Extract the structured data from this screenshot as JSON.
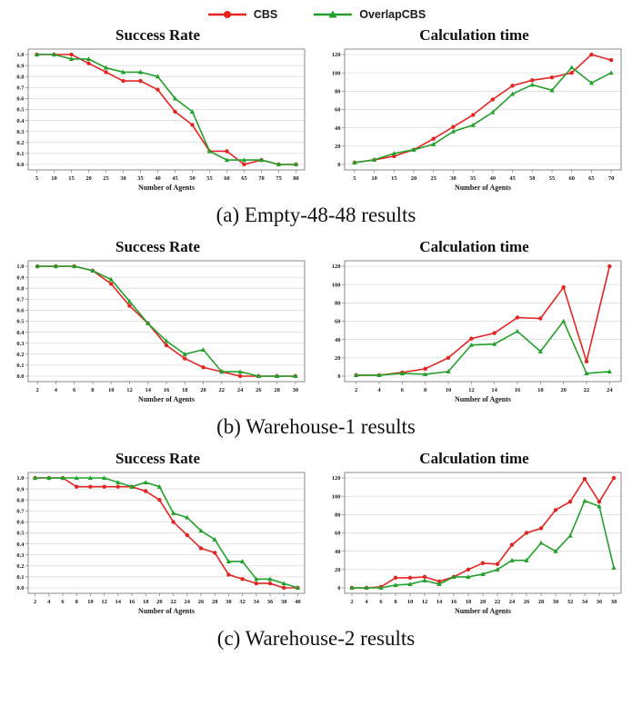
{
  "colors": {
    "cbs": "#e32522",
    "overlapcbs": "#23a02b",
    "grid": "#d8d8d8",
    "axis": "#8a8a8a",
    "tick_text": "#1a1a1a"
  },
  "legend": [
    {
      "label": "CBS",
      "color": "#e32522",
      "marker": "circle"
    },
    {
      "label": "OverlapCBS",
      "color": "#23a02b",
      "marker": "triangle"
    }
  ],
  "figures": [
    {
      "caption": "(a) Empty-48-48 results"
    },
    {
      "caption": "(b) Warehouse-1 results"
    },
    {
      "caption": "(c) Warehouse-2 results"
    }
  ],
  "chart_data": [
    {
      "figure": "a",
      "panel": "left",
      "type": "line",
      "title": "Success Rate",
      "xlabel": "Number of Agents",
      "x": [
        5,
        10,
        15,
        20,
        25,
        30,
        35,
        40,
        45,
        50,
        55,
        60,
        65,
        70,
        75,
        80
      ],
      "ylim": [
        0,
        1.0
      ],
      "yticks": [
        0.0,
        0.1,
        0.2,
        0.3,
        0.4,
        0.5,
        0.6,
        0.7,
        0.8,
        0.9,
        1.0
      ],
      "grid": true,
      "legend_position": "figure-top",
      "series": [
        {
          "name": "CBS",
          "values": [
            1.0,
            1.0,
            1.0,
            0.92,
            0.84,
            0.76,
            0.76,
            0.68,
            0.48,
            0.36,
            0.12,
            0.12,
            0.0,
            0.04,
            0.0,
            0.0
          ]
        },
        {
          "name": "OverlapCBS",
          "values": [
            1.0,
            1.0,
            0.96,
            0.96,
            0.88,
            0.84,
            0.84,
            0.8,
            0.6,
            0.48,
            0.12,
            0.04,
            0.04,
            0.04,
            0.0,
            0.0
          ]
        }
      ]
    },
    {
      "figure": "a",
      "panel": "right",
      "type": "line",
      "title": "Calculation time",
      "xlabel": "Number of Agents",
      "x": [
        5,
        10,
        15,
        20,
        25,
        30,
        35,
        40,
        45,
        50,
        55,
        60,
        65,
        70
      ],
      "ylim": [
        0,
        120
      ],
      "yticks": [
        0,
        20,
        40,
        60,
        80,
        100,
        120
      ],
      "grid": true,
      "legend_position": "figure-top",
      "series": [
        {
          "name": "CBS",
          "values": [
            2,
            5,
            9,
            16,
            28,
            41,
            54,
            71,
            86,
            92,
            95,
            100,
            120,
            114
          ]
        },
        {
          "name": "OverlapCBS",
          "values": [
            2,
            5,
            12,
            16,
            22,
            36,
            43,
            57,
            77,
            87,
            81,
            106,
            89,
            100
          ]
        }
      ]
    },
    {
      "figure": "b",
      "panel": "left",
      "type": "line",
      "title": "Success Rate",
      "xlabel": "Number of Agents",
      "x": [
        2,
        4,
        6,
        8,
        10,
        12,
        14,
        16,
        18,
        20,
        22,
        24,
        26,
        28,
        30
      ],
      "ylim": [
        0,
        1.0
      ],
      "yticks": [
        0.0,
        0.1,
        0.2,
        0.3,
        0.4,
        0.5,
        0.6,
        0.7,
        0.8,
        0.9,
        1.0
      ],
      "grid": true,
      "legend_position": "figure-top",
      "series": [
        {
          "name": "CBS",
          "values": [
            1.0,
            1.0,
            1.0,
            0.96,
            0.84,
            0.64,
            0.48,
            0.28,
            0.16,
            0.08,
            0.04,
            0.0,
            0.0,
            0.0,
            0.0
          ]
        },
        {
          "name": "OverlapCBS",
          "values": [
            1.0,
            1.0,
            1.0,
            0.96,
            0.88,
            0.68,
            0.48,
            0.32,
            0.2,
            0.24,
            0.04,
            0.04,
            0.0,
            0.0,
            0.0
          ]
        }
      ]
    },
    {
      "figure": "b",
      "panel": "right",
      "type": "line",
      "title": "Calculation time",
      "xlabel": "Number of Agents",
      "x": [
        2,
        4,
        6,
        8,
        10,
        12,
        14,
        16,
        18,
        20,
        22,
        24
      ],
      "ylim": [
        0,
        120
      ],
      "yticks": [
        0,
        20,
        40,
        60,
        80,
        100,
        120
      ],
      "grid": true,
      "legend_position": "figure-top",
      "series": [
        {
          "name": "CBS",
          "values": [
            1,
            1,
            4,
            8,
            20,
            41,
            47,
            64,
            63,
            97,
            16,
            120
          ]
        },
        {
          "name": "OverlapCBS",
          "values": [
            1,
            1,
            3,
            2,
            5,
            34,
            35,
            49,
            27,
            60,
            3,
            5
          ]
        }
      ]
    },
    {
      "figure": "c",
      "panel": "left",
      "type": "line",
      "title": "Success Rate",
      "xlabel": "Number of Agents",
      "x": [
        2,
        4,
        6,
        8,
        10,
        12,
        14,
        16,
        18,
        20,
        22,
        24,
        26,
        28,
        30,
        32,
        34,
        36,
        38,
        40
      ],
      "ylim": [
        0,
        1.0
      ],
      "yticks": [
        0.0,
        0.1,
        0.2,
        0.3,
        0.4,
        0.5,
        0.6,
        0.7,
        0.8,
        0.9,
        1.0
      ],
      "grid": true,
      "legend_position": "figure-top",
      "series": [
        {
          "name": "CBS",
          "values": [
            1.0,
            1.0,
            1.0,
            0.92,
            0.92,
            0.92,
            0.92,
            0.92,
            0.88,
            0.8,
            0.6,
            0.48,
            0.36,
            0.32,
            0.12,
            0.08,
            0.04,
            0.04,
            0.0,
            0.0
          ]
        },
        {
          "name": "OverlapCBS",
          "values": [
            1.0,
            1.0,
            1.0,
            1.0,
            1.0,
            1.0,
            0.96,
            0.92,
            0.96,
            0.92,
            0.68,
            0.64,
            0.52,
            0.44,
            0.24,
            0.24,
            0.08,
            0.08,
            0.04,
            0.0
          ]
        }
      ]
    },
    {
      "figure": "c",
      "panel": "right",
      "type": "line",
      "title": "Calculation time",
      "xlabel": "Number of Agents",
      "x": [
        2,
        4,
        6,
        8,
        10,
        12,
        14,
        16,
        18,
        20,
        22,
        24,
        26,
        28,
        30,
        32,
        34,
        36,
        38
      ],
      "ylim": [
        0,
        120
      ],
      "yticks": [
        0,
        20,
        40,
        60,
        80,
        100,
        120
      ],
      "grid": true,
      "legend_position": "figure-top",
      "series": [
        {
          "name": "CBS",
          "values": [
            0,
            0,
            1,
            11,
            11,
            12,
            7,
            12,
            20,
            27,
            26,
            47,
            60,
            65,
            85,
            94,
            119,
            94,
            120
          ]
        },
        {
          "name": "OverlapCBS",
          "values": [
            0,
            0,
            0,
            3,
            4,
            8,
            4,
            12,
            12,
            15,
            20,
            30,
            30,
            49,
            40,
            57,
            95,
            89,
            22
          ]
        }
      ]
    }
  ]
}
